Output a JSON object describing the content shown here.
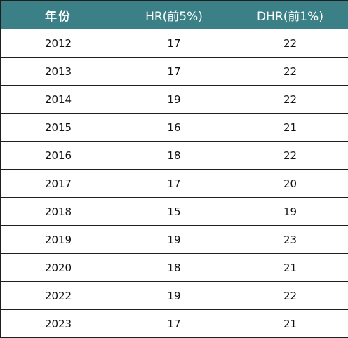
{
  "table": {
    "headers": [
      "年份",
      "HR(前5%)",
      "DHR(前1%)"
    ],
    "rows": [
      [
        "2012",
        "17",
        "22"
      ],
      [
        "2013",
        "17",
        "22"
      ],
      [
        "2014",
        "19",
        "22"
      ],
      [
        "2015",
        "16",
        "21"
      ],
      [
        "2016",
        "18",
        "22"
      ],
      [
        "2017",
        "17",
        "20"
      ],
      [
        "2018",
        "15",
        "19"
      ],
      [
        "2019",
        "19",
        "23"
      ],
      [
        "2020",
        "18",
        "21"
      ],
      [
        "2022",
        "19",
        "22"
      ],
      [
        "2023",
        "17",
        "21"
      ]
    ]
  },
  "colors": {
    "header_bg": "#3b8087",
    "header_text": "#ffffff",
    "border": "#1f1f1f"
  }
}
